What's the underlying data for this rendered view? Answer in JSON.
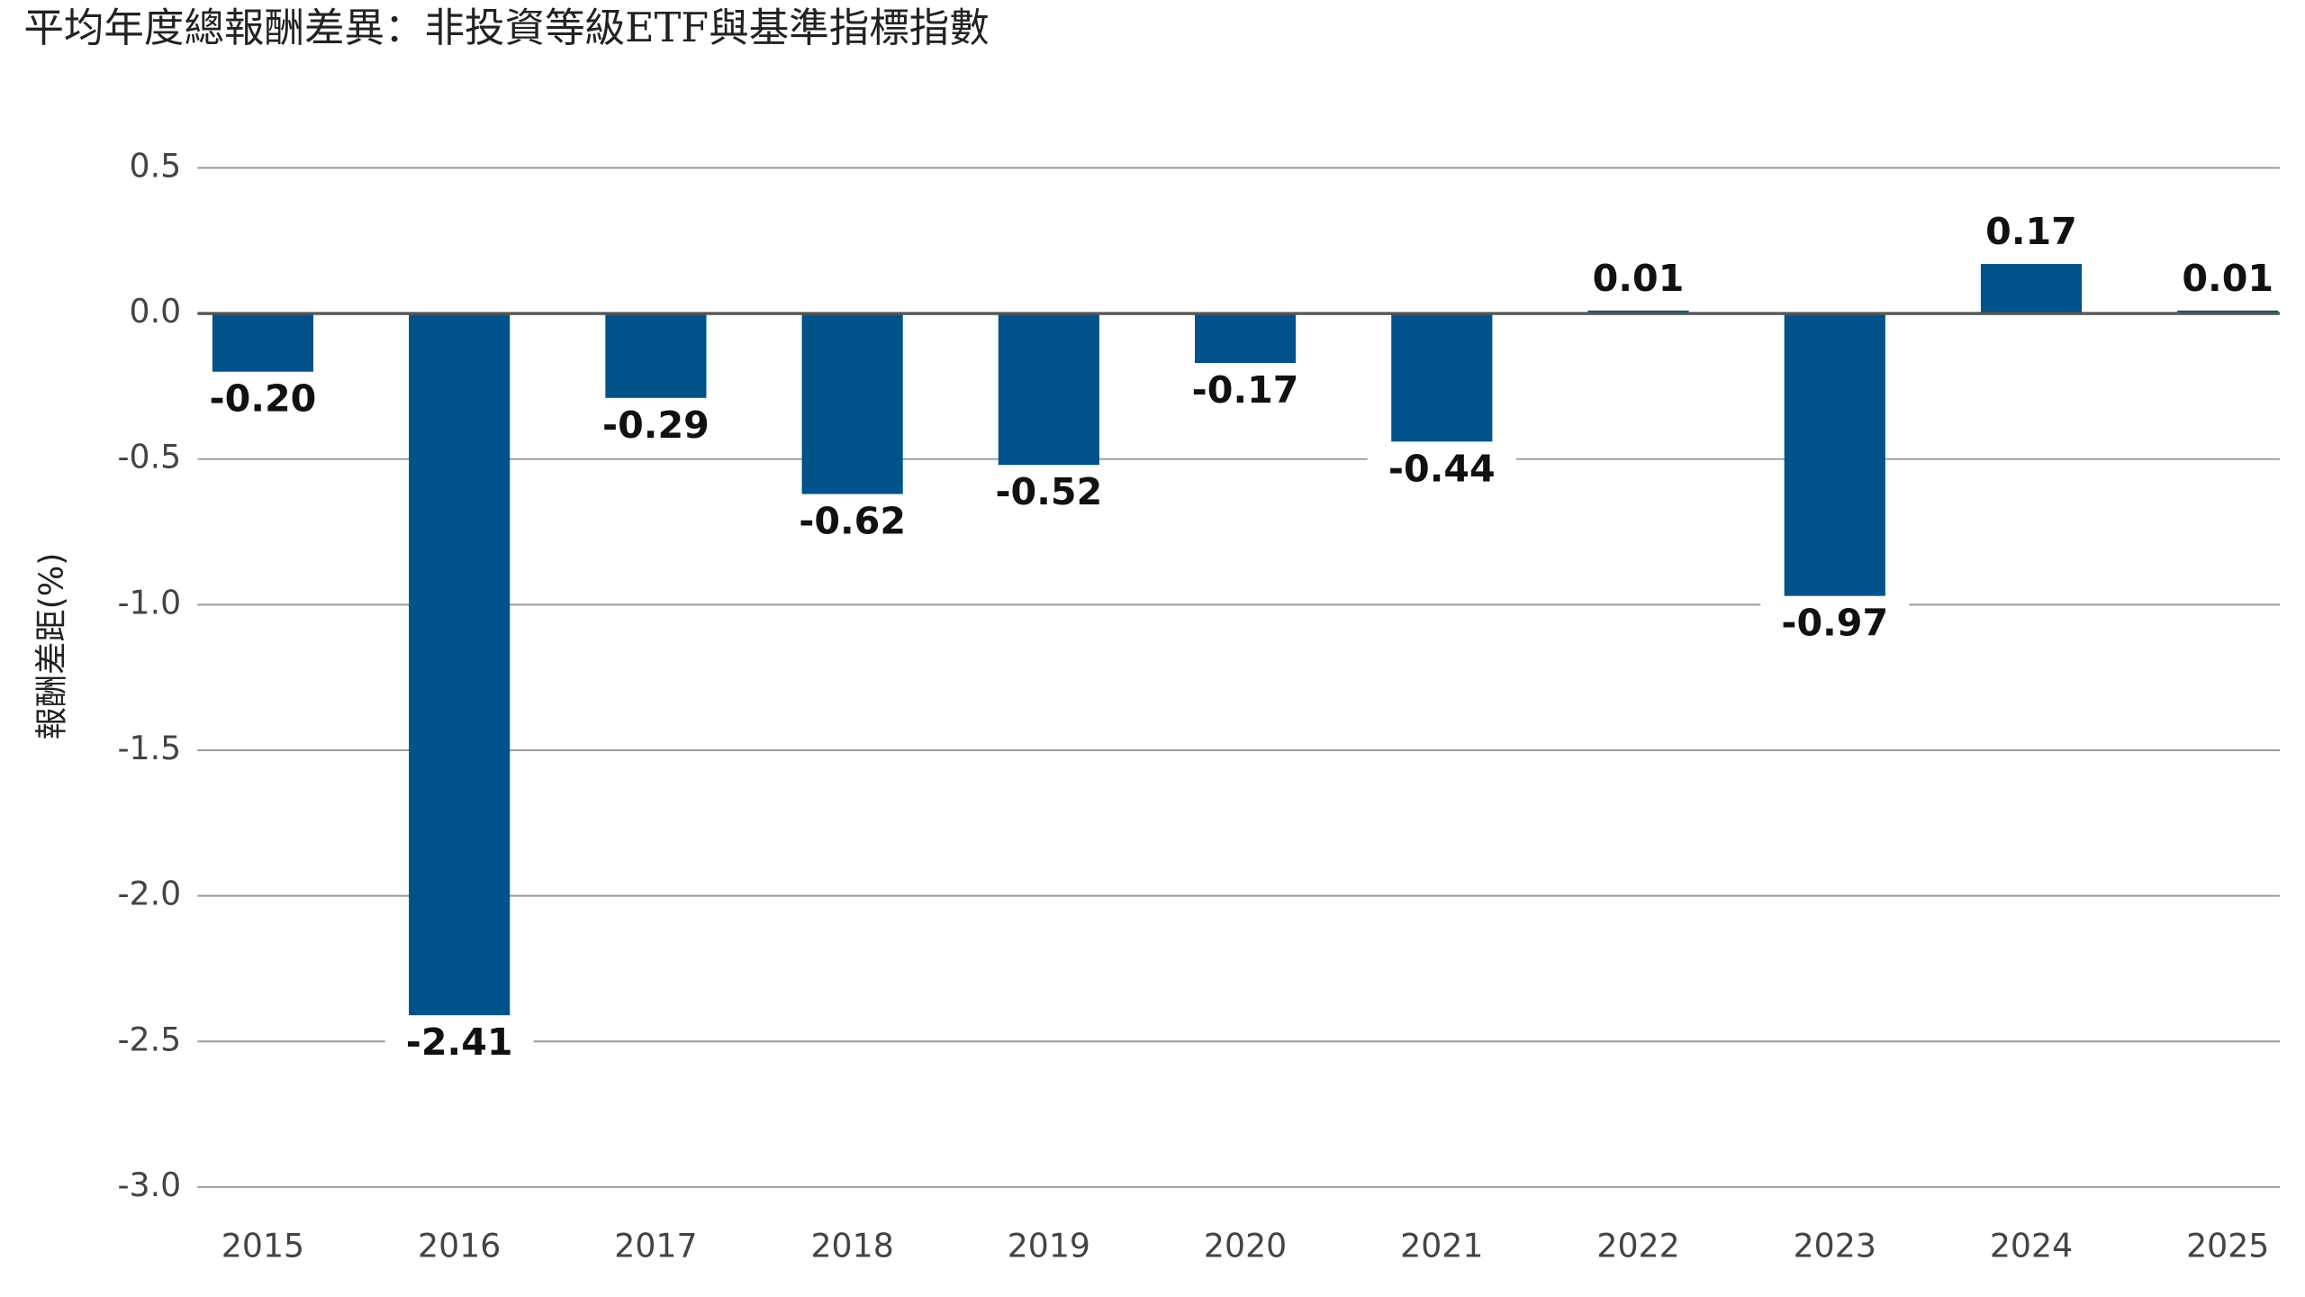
{
  "chart_data": {
    "type": "bar",
    "title": "平均年度總報酬差異：非投資等級ETF與基準指標指數",
    "y_label": "報酬差距(%)",
    "categories": [
      "2015",
      "2016",
      "2017",
      "2018",
      "2019",
      "2020",
      "2021",
      "2022",
      "2023",
      "2024",
      "2025"
    ],
    "values": [
      -0.2,
      -2.41,
      -0.29,
      -0.62,
      -0.52,
      -0.17,
      -0.44,
      0.01,
      -0.97,
      0.17,
      0.01
    ],
    "value_labels": [
      "-0.20",
      "-2.41",
      "-0.29",
      "-0.62",
      "-0.52",
      "-0.17",
      "-0.44",
      "0.01",
      "-0.97",
      "0.17",
      "0.01"
    ],
    "color": "#00538a",
    "ylim": [
      -3.0,
      0.5
    ],
    "yticks": [
      0.5,
      {
        "value": 0,
        "label": "0.0"
      },
      -0.5,
      {
        "value": -1,
        "label": "-1.0"
      },
      {
        "value": -1.5,
        "label": "-1.5"
      },
      {
        "value": -2,
        "label": "-2.0"
      },
      {
        "value": -2.5,
        "label": "-2.5"
      },
      {
        "value": -3,
        "label": "-3.0"
      }
    ],
    "grid": true
  }
}
